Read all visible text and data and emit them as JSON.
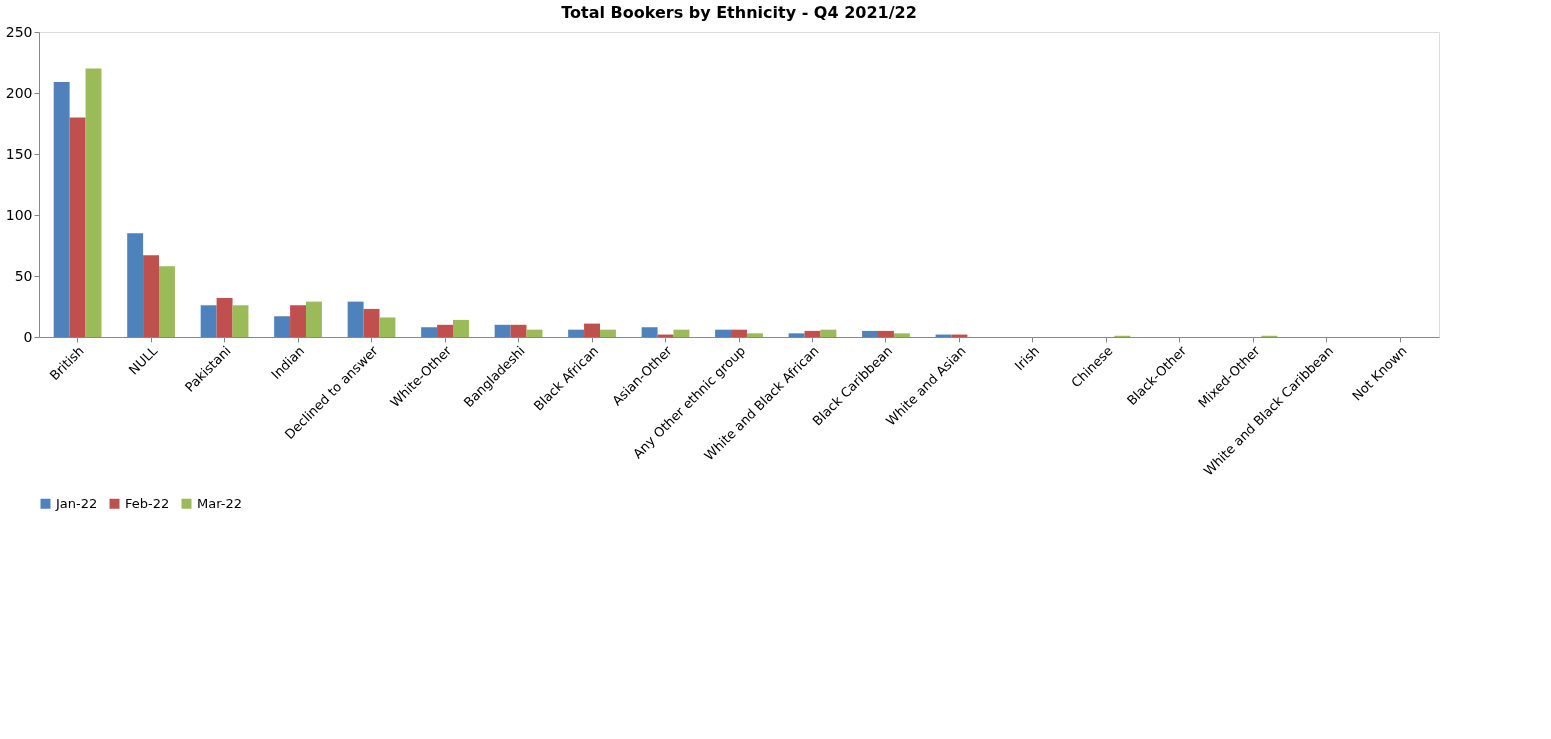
{
  "chart_data": {
    "type": "bar",
    "title": "Total Bookers by Ethnicity - Q4 2021/22",
    "categories": [
      "British",
      "NULL",
      "Pakistani",
      "Indian",
      "Declined to answer",
      "White-Other",
      "Bangladeshi",
      "Black African",
      "Asian-Other",
      "Any Other ethnic group",
      "White and Black African",
      "Black Caribbean",
      "White and Asian",
      "Irish",
      "Chinese",
      "Black-Other",
      "Mixed-Other",
      "White and Black Caribbean",
      "Not Known"
    ],
    "series": [
      {
        "name": "Jan-22",
        "color": "#4f81bd",
        "values": [
          209,
          85,
          26,
          17,
          29,
          8,
          10,
          6,
          8,
          6,
          3,
          5,
          2,
          0,
          0,
          0,
          0,
          0,
          0
        ]
      },
      {
        "name": "Feb-22",
        "color": "#c0504d",
        "values": [
          180,
          67,
          32,
          26,
          23,
          10,
          10,
          11,
          2,
          6,
          5,
          5,
          2,
          0,
          0,
          0,
          0,
          0,
          0
        ]
      },
      {
        "name": "Mar-22",
        "color": "#9bbb59",
        "values": [
          220,
          58,
          26,
          29,
          16,
          14,
          6,
          6,
          6,
          3,
          6,
          3,
          0,
          0,
          1,
          0,
          1,
          0,
          0
        ]
      }
    ],
    "ylim": [
      0,
      250
    ],
    "yticks": [
      0,
      50,
      100,
      150,
      200,
      250
    ],
    "grid": false,
    "legend": "bottom"
  }
}
